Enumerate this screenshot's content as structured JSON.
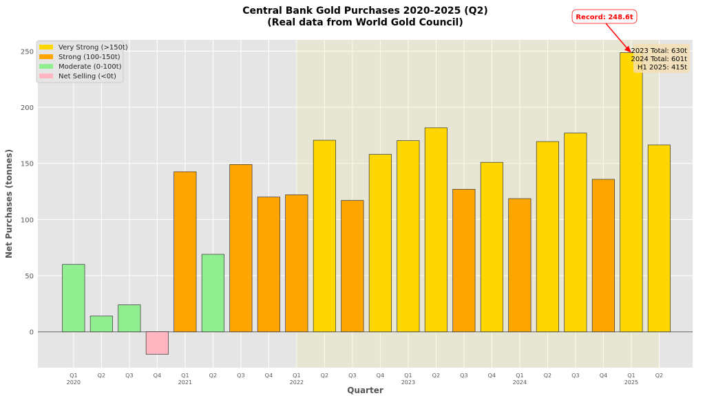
{
  "chart_data": {
    "type": "bar",
    "title": "Central Bank Gold Purchases 2020-2025 (Q2)",
    "subtitle": "(Real data from World Gold Council)",
    "xlabel": "Quarter",
    "ylabel": "Net Purchases (tonnes)",
    "ylim": [
      -32,
      260
    ],
    "yticks": [
      0,
      50,
      100,
      150,
      200,
      250
    ],
    "grid": true,
    "legend_placement": "top-left",
    "categories": [
      "Q1\n2020",
      "Q2",
      "Q3",
      "Q4",
      "Q1\n2021",
      "Q2",
      "Q3",
      "Q4",
      "Q1\n2022",
      "Q2",
      "Q3",
      "Q4",
      "Q1\n2023",
      "Q2",
      "Q3",
      "Q4",
      "Q1\n2024",
      "Q2",
      "Q3",
      "Q4",
      "Q1\n2025",
      "Q2"
    ],
    "values": [
      60,
      14,
      24,
      -20,
      142.5,
      69,
      149,
      120,
      122,
      170.6,
      117,
      158,
      170.3,
      181.7,
      126.9,
      150.9,
      118.6,
      169.4,
      177,
      135.8,
      248.6,
      166.4
    ],
    "categories_legend": [
      {
        "label": "Very Strong (>150t)",
        "color": "#FFD700"
      },
      {
        "label": "Strong (100-150t)",
        "color": "#FFA500"
      },
      {
        "label": "Moderate (0-100t)",
        "color": "#90EE90"
      },
      {
        "label": "Net Selling (<0t)",
        "color": "#FFB6C1"
      }
    ],
    "highlight_span": {
      "from_category_index": 8,
      "to_category_index": 21,
      "color": "#f0e68c"
    },
    "annotation": {
      "text": "Record: 248.6t",
      "category_index": 20,
      "value": 248.6,
      "color": "#ff0000"
    },
    "summary_box": [
      "2023 Total: 630t",
      "2024 Total: 601t",
      "H1 2025: 415t"
    ]
  }
}
